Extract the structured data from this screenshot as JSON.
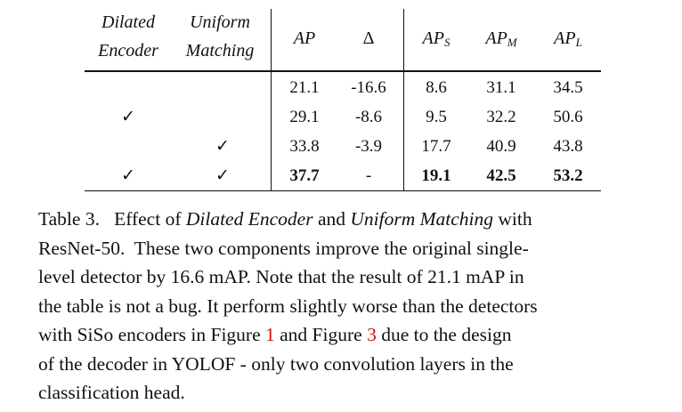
{
  "table": {
    "headers": {
      "dilated": [
        "Dilated",
        "Encoder"
      ],
      "uniform": [
        "Uniform",
        "Matching"
      ],
      "ap": "AP",
      "delta": "Δ",
      "aps": {
        "base": "AP",
        "sub": "S"
      },
      "apm": {
        "base": "AP",
        "sub": "M"
      },
      "apl": {
        "base": "AP",
        "sub": "L"
      }
    },
    "rows": [
      {
        "dilated": "",
        "uniform": "",
        "ap": "21.1",
        "delta": "-16.6",
        "aps": "8.6",
        "apm": "31.1",
        "apl": "34.5"
      },
      {
        "dilated": "✓",
        "uniform": "",
        "ap": "29.1",
        "delta": "-8.6",
        "aps": "9.5",
        "apm": "32.2",
        "apl": "50.6"
      },
      {
        "dilated": "",
        "uniform": "✓",
        "ap": "33.8",
        "delta": "-3.9",
        "aps": "17.7",
        "apm": "40.9",
        "apl": "43.8"
      },
      {
        "dilated": "✓",
        "uniform": "✓",
        "ap": "37.7",
        "delta": "-",
        "aps": "19.1",
        "apm": "42.5",
        "apl": "53.2"
      }
    ]
  },
  "caption": {
    "l1a": "Table 3.   Effect of ",
    "l1b": "Dilated Encoder",
    "l1c": " and ",
    "l1d": "Uniform Matching",
    "l1e": " with",
    "l2": "ResNet-50.  These two components improve the original single-",
    "l3": "level detector by 16.6 mAP. Note that the result of 21.1 mAP in",
    "l4": "the table is not a bug. It perform slightly worse than the detectors",
    "l5a": "with SiSo encoders in Figure ",
    "l5b": "1",
    "l5c": " and Figure ",
    "l5d": "3",
    "l5e": " due to the design",
    "l6": "of the decoder in YOLOF - only two convolution layers in the",
    "l7": "classification head."
  }
}
